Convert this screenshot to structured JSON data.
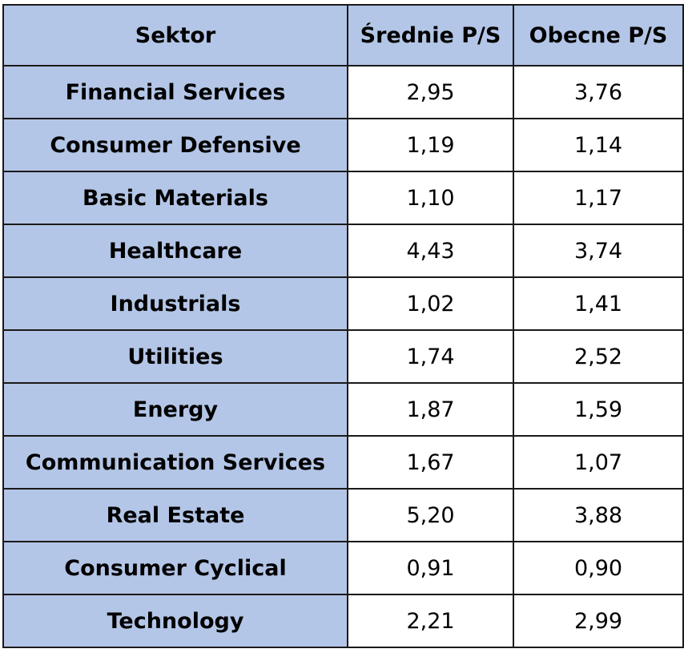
{
  "chart_data": {
    "type": "table",
    "columns": [
      "Sektor",
      "Średnie P/S",
      "Obecne P/S"
    ],
    "rows": [
      {
        "sector": "Financial Services",
        "avg_ps": "2,95",
        "current_ps": "3,76"
      },
      {
        "sector": "Consumer Defensive",
        "avg_ps": "1,19",
        "current_ps": "1,14"
      },
      {
        "sector": "Basic Materials",
        "avg_ps": "1,10",
        "current_ps": "1,17"
      },
      {
        "sector": "Healthcare",
        "avg_ps": "4,43",
        "current_ps": "3,74"
      },
      {
        "sector": "Industrials",
        "avg_ps": "1,02",
        "current_ps": "1,41"
      },
      {
        "sector": "Utilities",
        "avg_ps": "1,74",
        "current_ps": "2,52"
      },
      {
        "sector": "Energy",
        "avg_ps": "1,87",
        "current_ps": "1,59"
      },
      {
        "sector": "Communication Services",
        "avg_ps": "1,67",
        "current_ps": "1,07"
      },
      {
        "sector": "Real Estate",
        "avg_ps": "5,20",
        "current_ps": "3,88"
      },
      {
        "sector": "Consumer Cyclical",
        "avg_ps": "0,91",
        "current_ps": "0,90"
      },
      {
        "sector": "Technology",
        "avg_ps": "2,21",
        "current_ps": "2,99"
      }
    ]
  },
  "colors": {
    "header_fill": "#b4c6e7",
    "sector_fill": "#b4c6e7",
    "value_fill": "#ffffff",
    "border": "#1a1a1a"
  }
}
